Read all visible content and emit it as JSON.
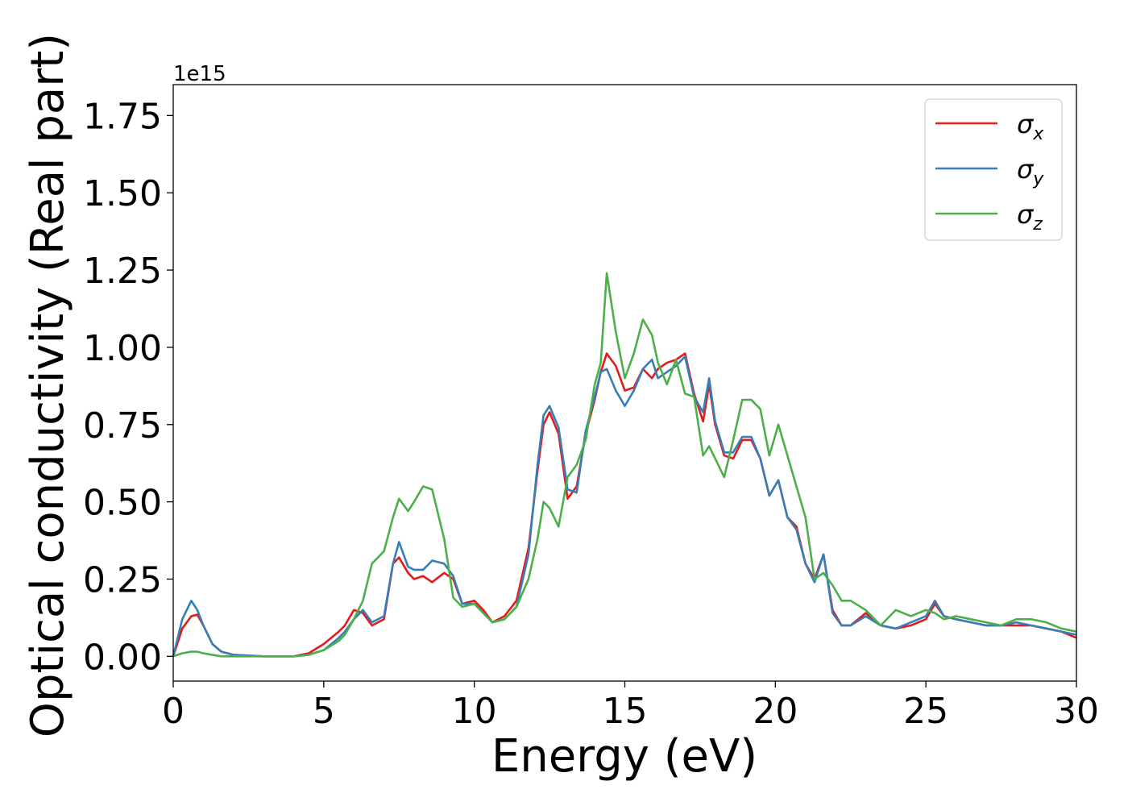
{
  "chart_data": {
    "type": "line",
    "xlabel": "Energy (eV)",
    "ylabel": "Optical conductivity (Real part)",
    "y_offset_label": "1e15",
    "xlim": [
      0,
      30
    ],
    "ylim": [
      -0.08,
      1.85
    ],
    "x_ticks": [
      0,
      5,
      10,
      15,
      20,
      25,
      30
    ],
    "x_tick_labels": [
      "0",
      "5",
      "10",
      "15",
      "20",
      "25",
      "30"
    ],
    "y_ticks": [
      0.0,
      0.25,
      0.5,
      0.75,
      1.0,
      1.25,
      1.5,
      1.75
    ],
    "y_tick_labels": [
      "0.00",
      "0.25",
      "0.50",
      "0.75",
      "1.00",
      "1.25",
      "1.50",
      "1.75"
    ],
    "grid": false,
    "legend_position": "top-right",
    "series": [
      {
        "name": "σ",
        "subscript": "x",
        "color": "#e41a1c",
        "x": [
          0,
          0.3,
          0.6,
          0.8,
          1.0,
          1.3,
          1.6,
          2,
          3,
          4,
          4.5,
          5,
          5.5,
          5.7,
          6,
          6.3,
          6.6,
          7,
          7.3,
          7.5,
          7.8,
          8,
          8.3,
          8.6,
          9,
          9.3,
          9.6,
          10,
          10.3,
          10.6,
          11,
          11.4,
          11.8,
          12.1,
          12.3,
          12.5,
          12.8,
          13.1,
          13.4,
          13.7,
          14,
          14.2,
          14.4,
          14.7,
          15,
          15.3,
          15.6,
          15.9,
          16.1,
          16.4,
          16.7,
          17,
          17.3,
          17.6,
          17.8,
          18,
          18.3,
          18.6,
          18.9,
          19.2,
          19.5,
          19.8,
          20.1,
          20.4,
          20.7,
          21,
          21.3,
          21.6,
          21.9,
          22.2,
          22.5,
          23,
          23.5,
          24,
          24.5,
          25,
          25.3,
          25.6,
          26,
          26.5,
          27,
          27.5,
          28,
          28.5,
          29,
          29.5,
          30
        ],
        "y": [
          0,
          0.09,
          0.13,
          0.135,
          0.1,
          0.04,
          0.015,
          0.005,
          0,
          0,
          0.01,
          0.04,
          0.08,
          0.1,
          0.15,
          0.14,
          0.1,
          0.12,
          0.3,
          0.32,
          0.27,
          0.25,
          0.26,
          0.24,
          0.27,
          0.25,
          0.17,
          0.18,
          0.15,
          0.11,
          0.13,
          0.18,
          0.35,
          0.6,
          0.75,
          0.79,
          0.72,
          0.51,
          0.55,
          0.72,
          0.83,
          0.92,
          0.98,
          0.94,
          0.86,
          0.87,
          0.93,
          0.9,
          0.93,
          0.95,
          0.96,
          0.98,
          0.85,
          0.76,
          0.88,
          0.75,
          0.65,
          0.64,
          0.7,
          0.7,
          0.64,
          0.52,
          0.57,
          0.45,
          0.42,
          0.3,
          0.25,
          0.33,
          0.15,
          0.1,
          0.1,
          0.14,
          0.1,
          0.09,
          0.1,
          0.12,
          0.17,
          0.13,
          0.12,
          0.11,
          0.1,
          0.1,
          0.1,
          0.1,
          0.09,
          0.08,
          0.06
        ]
      },
      {
        "name": "σ",
        "subscript": "y",
        "color": "#377eb8",
        "x": [
          0,
          0.3,
          0.6,
          0.8,
          1.0,
          1.3,
          1.6,
          2,
          3,
          4,
          4.5,
          5,
          5.5,
          5.7,
          6,
          6.3,
          6.6,
          7,
          7.3,
          7.5,
          7.8,
          8,
          8.3,
          8.6,
          9,
          9.3,
          9.6,
          10,
          10.3,
          10.6,
          11,
          11.4,
          11.8,
          12.1,
          12.3,
          12.5,
          12.8,
          13.1,
          13.4,
          13.7,
          14,
          14.2,
          14.4,
          14.7,
          15,
          15.3,
          15.6,
          15.9,
          16.1,
          16.4,
          16.7,
          17,
          17.3,
          17.6,
          17.8,
          18,
          18.3,
          18.6,
          18.9,
          19.2,
          19.5,
          19.8,
          20.1,
          20.4,
          20.7,
          21,
          21.3,
          21.6,
          21.9,
          22.2,
          22.5,
          23,
          23.5,
          24,
          24.5,
          25,
          25.3,
          25.6,
          26,
          26.5,
          27,
          27.5,
          28,
          28.5,
          29,
          29.5,
          30
        ],
        "y": [
          0,
          0.12,
          0.18,
          0.15,
          0.1,
          0.04,
          0.015,
          0.005,
          0,
          0,
          0.005,
          0.02,
          0.06,
          0.08,
          0.12,
          0.15,
          0.11,
          0.13,
          0.3,
          0.37,
          0.29,
          0.28,
          0.28,
          0.31,
          0.3,
          0.26,
          0.17,
          0.17,
          0.14,
          0.11,
          0.12,
          0.16,
          0.33,
          0.62,
          0.78,
          0.81,
          0.74,
          0.54,
          0.53,
          0.73,
          0.84,
          0.92,
          0.93,
          0.86,
          0.81,
          0.86,
          0.93,
          0.96,
          0.9,
          0.92,
          0.94,
          0.97,
          0.84,
          0.79,
          0.9,
          0.76,
          0.66,
          0.66,
          0.71,
          0.71,
          0.64,
          0.52,
          0.57,
          0.45,
          0.41,
          0.3,
          0.24,
          0.33,
          0.14,
          0.1,
          0.1,
          0.13,
          0.1,
          0.09,
          0.11,
          0.13,
          0.18,
          0.13,
          0.12,
          0.11,
          0.1,
          0.1,
          0.11,
          0.1,
          0.09,
          0.08,
          0.07
        ]
      },
      {
        "name": "σ",
        "subscript": "z",
        "color": "#4daf4a",
        "x": [
          0,
          0.3,
          0.6,
          0.8,
          1.0,
          1.3,
          1.6,
          2,
          3,
          4,
          4.5,
          5,
          5.5,
          5.7,
          6,
          6.3,
          6.6,
          7,
          7.3,
          7.5,
          7.8,
          8,
          8.3,
          8.6,
          9,
          9.3,
          9.6,
          10,
          10.3,
          10.6,
          11,
          11.4,
          11.8,
          12.1,
          12.3,
          12.5,
          12.8,
          13.1,
          13.4,
          13.7,
          14,
          14.2,
          14.4,
          14.7,
          15,
          15.3,
          15.6,
          15.9,
          16.1,
          16.4,
          16.7,
          17,
          17.3,
          17.6,
          17.8,
          18,
          18.3,
          18.6,
          18.9,
          19.2,
          19.5,
          19.8,
          20.1,
          20.4,
          20.7,
          21,
          21.3,
          21.6,
          21.9,
          22.2,
          22.5,
          23,
          23.5,
          24,
          24.5,
          25,
          25.3,
          25.6,
          26,
          26.5,
          27,
          27.5,
          28,
          28.5,
          29,
          29.5,
          30
        ],
        "y": [
          0,
          0.01,
          0.015,
          0.015,
          0.01,
          0.005,
          0,
          0,
          0,
          0,
          0.005,
          0.02,
          0.05,
          0.07,
          0.12,
          0.18,
          0.3,
          0.34,
          0.45,
          0.51,
          0.47,
          0.5,
          0.55,
          0.54,
          0.38,
          0.19,
          0.16,
          0.17,
          0.14,
          0.11,
          0.12,
          0.16,
          0.25,
          0.38,
          0.5,
          0.48,
          0.42,
          0.58,
          0.62,
          0.7,
          0.88,
          0.95,
          1.24,
          1.05,
          0.9,
          0.98,
          1.09,
          1.04,
          0.95,
          0.88,
          0.96,
          0.85,
          0.84,
          0.65,
          0.68,
          0.64,
          0.58,
          0.7,
          0.83,
          0.83,
          0.8,
          0.65,
          0.75,
          0.65,
          0.55,
          0.45,
          0.25,
          0.27,
          0.23,
          0.18,
          0.18,
          0.15,
          0.1,
          0.15,
          0.13,
          0.15,
          0.14,
          0.12,
          0.13,
          0.12,
          0.11,
          0.1,
          0.12,
          0.12,
          0.11,
          0.09,
          0.08
        ]
      }
    ]
  }
}
